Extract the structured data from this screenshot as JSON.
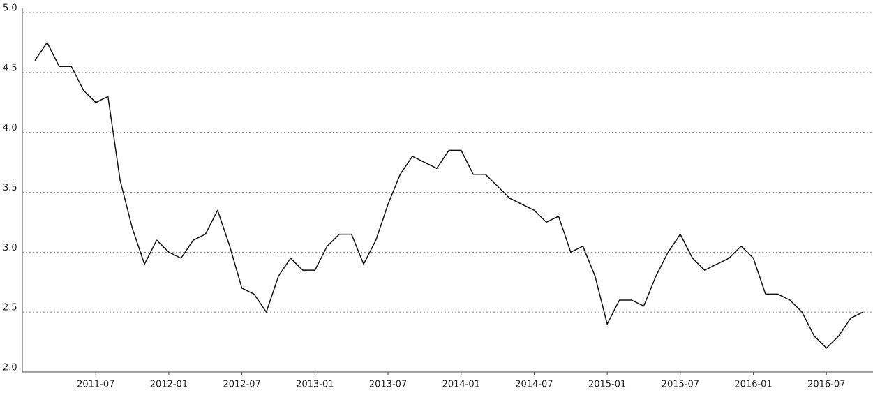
{
  "chart_data": {
    "type": "line",
    "x": [
      "2011-02",
      "2011-03",
      "2011-04",
      "2011-05",
      "2011-06",
      "2011-07",
      "2011-08",
      "2011-09",
      "2011-10",
      "2011-11",
      "2011-12",
      "2012-01",
      "2012-02",
      "2012-03",
      "2012-04",
      "2012-05",
      "2012-06",
      "2012-07",
      "2012-08",
      "2012-09",
      "2012-10",
      "2012-11",
      "2012-12",
      "2013-01",
      "2013-02",
      "2013-03",
      "2013-04",
      "2013-05",
      "2013-06",
      "2013-07",
      "2013-08",
      "2013-09",
      "2013-10",
      "2013-11",
      "2013-12",
      "2014-01",
      "2014-02",
      "2014-03",
      "2014-04",
      "2014-05",
      "2014-06",
      "2014-07",
      "2014-08",
      "2014-09",
      "2014-10",
      "2014-11",
      "2014-12",
      "2015-01",
      "2015-02",
      "2015-03",
      "2015-04",
      "2015-05",
      "2015-06",
      "2015-07",
      "2015-08",
      "2015-09",
      "2015-10",
      "2015-11",
      "2015-12",
      "2016-01",
      "2016-02",
      "2016-03",
      "2016-04",
      "2016-05",
      "2016-06",
      "2016-07",
      "2016-08",
      "2016-09",
      "2016-10"
    ],
    "series": [
      {
        "color": "#111111",
        "values": [
          4.6,
          4.75,
          4.55,
          4.55,
          4.35,
          4.25,
          4.3,
          3.6,
          3.2,
          2.9,
          3.1,
          3.0,
          2.95,
          3.1,
          3.15,
          3.35,
          3.05,
          2.7,
          2.65,
          2.5,
          2.8,
          2.95,
          2.85,
          2.85,
          3.05,
          3.15,
          3.15,
          2.9,
          3.1,
          3.4,
          3.65,
          3.8,
          3.75,
          3.7,
          3.85,
          3.85,
          3.65,
          3.65,
          3.55,
          3.45,
          3.4,
          3.35,
          3.25,
          3.3,
          3.0,
          3.05,
          2.8,
          2.4,
          2.6,
          2.6,
          2.55,
          2.8,
          3.0,
          3.15,
          2.95,
          2.85,
          2.9,
          2.95,
          3.05,
          2.95,
          2.65,
          2.65,
          2.6,
          2.5,
          2.3,
          2.2,
          2.3,
          2.45,
          2.5
        ]
      }
    ],
    "xticks": [
      "2011-07",
      "2012-01",
      "2012-07",
      "2013-01",
      "2013-07",
      "2014-01",
      "2014-07",
      "2015-01",
      "2015-07",
      "2016-01",
      "2016-07"
    ],
    "ylim": [
      2,
      5
    ],
    "yticks": [
      {
        "value": 2,
        "label": "2.0"
      },
      2.5,
      {
        "value": 3,
        "label": "3.0"
      },
      3.5,
      {
        "value": 4,
        "label": "4.0"
      },
      4.5,
      {
        "value": 5,
        "label": "5.0"
      }
    ],
    "grid": true
  }
}
